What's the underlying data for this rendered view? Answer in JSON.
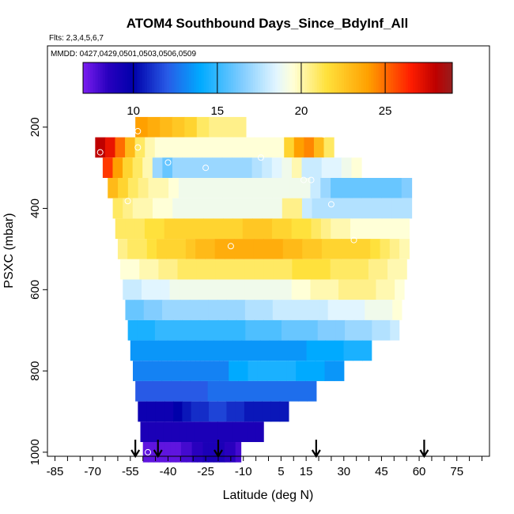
{
  "chart_data": {
    "type": "heatmap",
    "title": "ATOM4 Southbound Days_Since_BdyInf_All",
    "subtitle_flights": "Flts: 2,3,4,5,6,7",
    "subtitle_dates": "MMDD: 0427,0429,0501,0503,0506,0509",
    "xlabel": "Latitude (deg N)",
    "ylabel": "PSXC (mbar)",
    "xlim": [
      -88,
      88
    ],
    "ylim": [
      1010,
      0
    ],
    "x_ticks": [
      -85,
      -70,
      -55,
      -40,
      -25,
      -10,
      5,
      15,
      30,
      45,
      60,
      75
    ],
    "x_tick_labels": [
      "-85",
      "-70",
      "-55",
      "-40",
      "-25",
      "-10",
      "5",
      "15",
      "30",
      "45",
      "60",
      "75"
    ],
    "y_ticks": [
      200,
      400,
      600,
      800,
      1000
    ],
    "y_tick_labels": [
      "200",
      "400",
      "600",
      "800",
      "1000"
    ],
    "colorbar": {
      "min": 7,
      "max": 29,
      "ticks": [
        10,
        15,
        20,
        25
      ],
      "tick_labels": [
        "10",
        "15",
        "20",
        "25"
      ]
    },
    "rows": [
      {
        "p": 200,
        "x0": -53,
        "x1": -9,
        "v": [
          24,
          23.5,
          23,
          22.5,
          22,
          21,
          20.5,
          20.5,
          20.5
        ]
      },
      {
        "p": 250,
        "x0": -69,
        "x1": 26,
        "v": [
          28,
          27,
          25,
          23,
          21,
          20,
          19.5,
          19.5,
          19.5,
          19.5,
          19.5,
          19.5,
          19.5,
          19.5,
          19.5,
          19.5,
          19.5,
          19.5,
          19.5,
          22,
          24,
          24.5,
          23,
          21
        ]
      },
      {
        "p": 300,
        "x0": -66,
        "x1": 37,
        "v": [
          26,
          24,
          22,
          21,
          20,
          17,
          16,
          17,
          17,
          17,
          17,
          17,
          17,
          17,
          17,
          17.5,
          18,
          18.5,
          19,
          20,
          18,
          18,
          18.5,
          18.5,
          19,
          19.5
        ]
      },
      {
        "p": 350,
        "x0": -64,
        "x1": 57,
        "v": [
          23,
          22,
          21,
          20.5,
          20,
          20,
          19.5,
          19,
          19,
          19,
          19,
          19,
          19,
          19,
          19,
          19,
          19,
          19,
          19,
          19,
          18,
          17,
          16,
          16,
          16,
          16,
          16,
          16,
          16,
          16.5
        ]
      },
      {
        "p": 400,
        "x0": -62,
        "x1": 57,
        "v": [
          21,
          20.5,
          20,
          20,
          19.5,
          19.5,
          19,
          19,
          19,
          19,
          19,
          19,
          19,
          19,
          19,
          19,
          19,
          20.5,
          20.5,
          18,
          17.5,
          17.5,
          17.5,
          17.5,
          17.5,
          17.5,
          17.5,
          17.5,
          17.5,
          17.5
        ]
      },
      {
        "p": 450,
        "x0": -61,
        "x1": 56,
        "v": [
          21,
          21,
          21,
          21.5,
          21.5,
          22,
          22,
          22,
          22,
          22,
          22,
          22,
          22,
          22.5,
          22.5,
          22.5,
          22,
          22,
          21.5,
          21.5,
          21,
          20.5,
          20,
          20,
          19.5,
          19.5,
          19.5,
          19.5,
          19.5,
          19.5
        ]
      },
      {
        "p": 500,
        "x0": -60,
        "x1": 56,
        "v": [
          20.5,
          21,
          21,
          21.5,
          22,
          22,
          22,
          22.5,
          23,
          23,
          23.5,
          23.5,
          23.5,
          23.5,
          23.5,
          23.5,
          23.5,
          23,
          23,
          22.5,
          22.5,
          22,
          22,
          22,
          22,
          22,
          21.5,
          21,
          20.5,
          20
        ]
      },
      {
        "p": 550,
        "x0": -59,
        "x1": 55,
        "v": [
          19.5,
          19.5,
          20,
          20,
          20.5,
          20.5,
          21,
          21,
          21,
          21,
          21,
          21,
          21,
          21,
          21,
          21,
          21,
          21,
          21.5,
          21.5,
          21.5,
          21.5,
          21,
          21,
          21,
          21,
          20.5,
          20.5,
          20,
          20
        ]
      },
      {
        "p": 600,
        "x0": -58,
        "x1": 54,
        "v": [
          18,
          18,
          18.5,
          18.5,
          18.5,
          19,
          19,
          19,
          19,
          19,
          19,
          19,
          19,
          19,
          19,
          19,
          19,
          19,
          19.5,
          19.5,
          20,
          20,
          20,
          20.5,
          20.5,
          20.5,
          20.5,
          20,
          20,
          19.5
        ]
      },
      {
        "p": 650,
        "x0": -57,
        "x1": 53,
        "v": [
          16,
          16,
          16.5,
          16.5,
          17,
          17,
          17,
          17,
          17,
          17,
          17,
          17,
          17,
          17.5,
          17.5,
          17.5,
          18,
          18,
          18,
          18,
          18,
          18,
          18.5,
          18.5,
          18.5,
          18.5,
          19,
          19,
          19,
          19.5
        ]
      },
      {
        "p": 700,
        "x0": -56,
        "x1": 52,
        "v": [
          14.5,
          14.5,
          14.5,
          15,
          15,
          15,
          15,
          15,
          15,
          15,
          15,
          15,
          15,
          15.5,
          15.5,
          15.5,
          15.5,
          16,
          16,
          16,
          16,
          16.5,
          16.5,
          16.5,
          17,
          17,
          17,
          17.5,
          17.5,
          18
        ]
      },
      {
        "p": 750,
        "x0": -55,
        "x1": 41,
        "v": [
          13.5,
          13.5,
          13.5,
          13.5,
          13.5,
          13.5,
          13.5,
          13.5,
          13.5,
          13.5,
          13.5,
          13.5,
          13.5,
          13.5,
          13.5,
          13.5,
          13.5,
          13.5,
          13.5,
          14,
          14,
          14,
          14,
          14.5,
          14.5,
          14.5
        ]
      },
      {
        "p": 800,
        "x0": -54,
        "x1": 30,
        "v": [
          13,
          13,
          13,
          13,
          13,
          13,
          13,
          13,
          13,
          13,
          14,
          14,
          14.5,
          14.5,
          14.5,
          14.5,
          14.5,
          14,
          14,
          14,
          13.5,
          13.5
        ]
      },
      {
        "p": 850,
        "x0": -53,
        "x1": 19,
        "v": [
          12,
          12,
          12,
          12,
          12,
          12,
          12,
          12,
          12.5,
          12.5,
          12.5,
          12.5,
          12.5,
          12.5,
          12.5,
          12.5,
          12.5,
          12.5,
          12.5,
          12.5
        ]
      },
      {
        "p": 900,
        "x0": -52,
        "x1": 8,
        "v": [
          9.5,
          9.5,
          9.5,
          9.5,
          10,
          10.5,
          11,
          11,
          11.5,
          11.5,
          11,
          11,
          10.5,
          10.5,
          10.5,
          10.5,
          10.5
        ]
      },
      {
        "p": 950,
        "x0": -51,
        "x1": -2,
        "v": [
          9,
          9,
          9,
          9,
          9,
          9,
          9,
          9,
          9,
          9,
          9,
          9,
          9,
          9,
          9,
          9
        ]
      },
      {
        "p": 1000,
        "x0": -50,
        "x1": -11,
        "v": [
          7.5,
          7.5,
          7.5,
          7.5,
          7.5,
          7.5,
          7.5,
          8,
          8,
          8.5,
          8.5,
          9,
          9,
          9,
          9,
          8.5,
          8.5,
          8
        ]
      }
    ],
    "points": [
      {
        "lat": -52,
        "p": 210
      },
      {
        "lat": -78,
        "p": 250
      },
      {
        "lat": -52,
        "p": 250
      },
      {
        "lat": -67,
        "p": 262
      },
      {
        "lat": -40,
        "p": 287
      },
      {
        "lat": -25,
        "p": 300
      },
      {
        "lat": -3,
        "p": 275
      },
      {
        "lat": 14,
        "p": 330
      },
      {
        "lat": 17,
        "p": 330
      },
      {
        "lat": 25,
        "p": 390
      },
      {
        "lat": -56,
        "p": 382
      },
      {
        "lat": -15,
        "p": 493
      },
      {
        "lat": 34,
        "p": 478
      },
      {
        "lat": 77,
        "p": 330
      },
      {
        "lat": 22,
        "p": 218
      },
      {
        "lat": -48,
        "p": 1000
      },
      {
        "lat": 5,
        "p": 995
      },
      {
        "lat": 9,
        "p": 995
      }
    ],
    "arrows_lat": [
      -53,
      -44,
      -20,
      19,
      62
    ]
  }
}
